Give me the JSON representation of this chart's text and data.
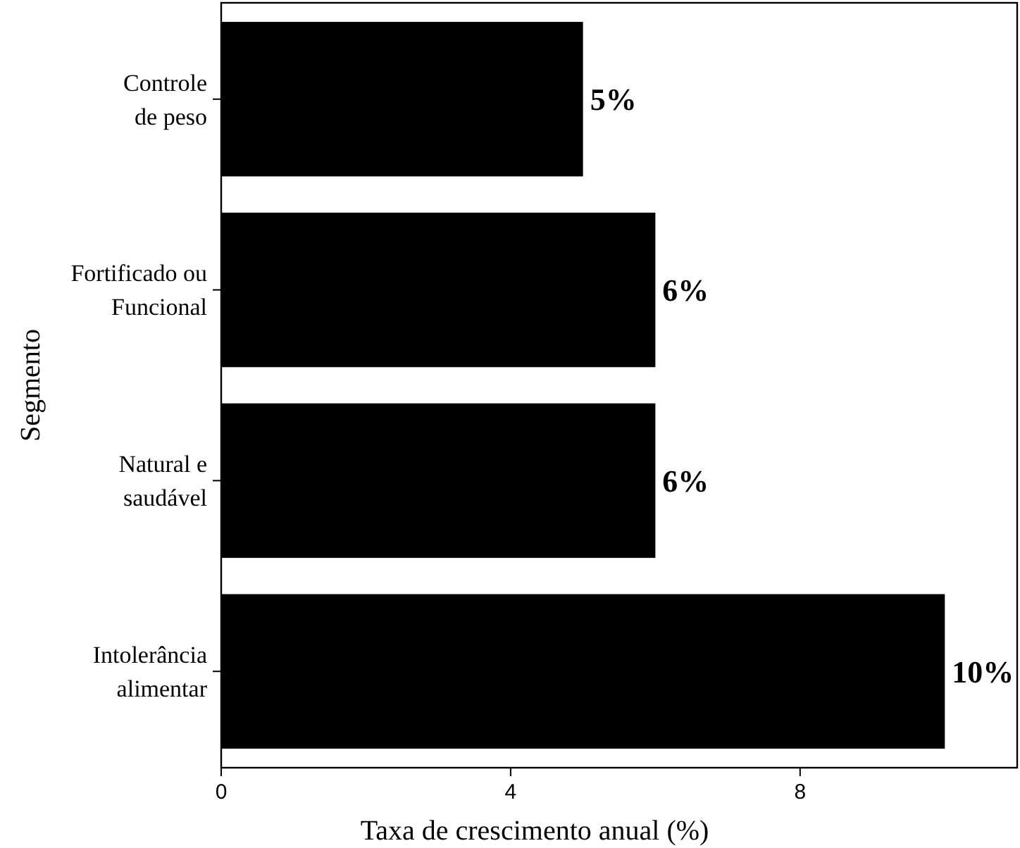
{
  "chart_data": {
    "type": "bar",
    "orientation": "horizontal",
    "xlabel": "Taxa de crescimento anual (%)",
    "ylabel": "Segmento",
    "categories": [
      "Controle\nde peso",
      "Fortificado ou\nFuncional",
      "Natural e\nsaudável",
      "Intolerância\nalimentar"
    ],
    "values": [
      5,
      6,
      6,
      10
    ],
    "color": "#000000",
    "value_labels": [
      "5%",
      "6%",
      "6%",
      "10%"
    ],
    "xlim": [
      0,
      11
    ],
    "xticks": [
      0,
      4,
      8
    ],
    "grid": false
  }
}
